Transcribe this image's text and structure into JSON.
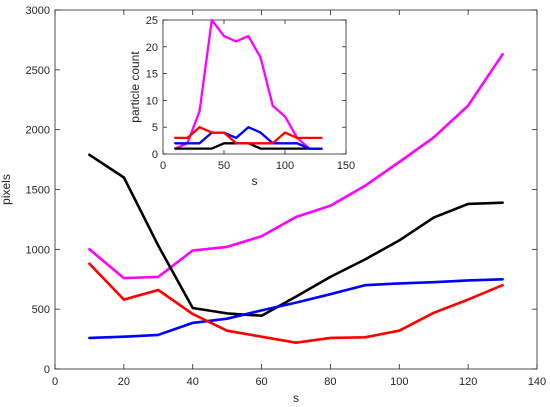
{
  "chart_data": [
    {
      "type": "line",
      "title": "",
      "xlabel": "s",
      "ylabel": "pixels",
      "xlim": [
        0,
        140
      ],
      "ylim": [
        0,
        3000
      ],
      "xticks": [
        0,
        20,
        40,
        60,
        80,
        100,
        120,
        140
      ],
      "yticks": [
        0,
        500,
        1000,
        1500,
        2000,
        2500,
        3000
      ],
      "grid": false,
      "legend": "none",
      "x": [
        10,
        20,
        30,
        40,
        50,
        60,
        70,
        80,
        90,
        100,
        110,
        120,
        130
      ],
      "series": [
        {
          "color": "#ff00ff",
          "values": [
            1000,
            760,
            770,
            990,
            1020,
            1110,
            1270,
            1365,
            1530,
            1730,
            1935,
            2200,
            2630
          ]
        },
        {
          "color": "#000000",
          "values": [
            1790,
            1600,
            1030,
            510,
            465,
            445,
            605,
            770,
            915,
            1075,
            1265,
            1380,
            1390
          ]
        },
        {
          "color": "#0000ff",
          "values": [
            260,
            270,
            285,
            385,
            420,
            490,
            555,
            625,
            700,
            715,
            725,
            740,
            750
          ]
        },
        {
          "color": "#ff0000",
          "values": [
            880,
            580,
            660,
            460,
            320,
            270,
            220,
            260,
            265,
            320,
            470,
            580,
            700
          ]
        }
      ]
    },
    {
      "type": "line",
      "title": "",
      "xlabel": "s",
      "ylabel": "particle count",
      "xlim": [
        0,
        150
      ],
      "ylim": [
        0,
        25
      ],
      "xticks": [
        0,
        50,
        100,
        150
      ],
      "yticks": [
        0,
        5,
        10,
        15,
        20,
        25
      ],
      "grid": false,
      "legend": "none",
      "x": [
        10,
        20,
        30,
        40,
        50,
        60,
        70,
        80,
        90,
        100,
        110,
        120,
        130
      ],
      "series": [
        {
          "color": "#ff00ff",
          "values": [
            1,
            2,
            8,
            25,
            22,
            21,
            22,
            18,
            9,
            7,
            3,
            1,
            1
          ]
        },
        {
          "color": "#000000",
          "values": [
            1,
            1,
            1,
            1,
            2,
            2,
            2,
            1,
            1,
            1,
            1,
            1,
            1
          ]
        },
        {
          "color": "#0000ff",
          "values": [
            2,
            2,
            2,
            4,
            4,
            3,
            5,
            4,
            2,
            2,
            2,
            1,
            1
          ]
        },
        {
          "color": "#ff0000",
          "values": [
            3,
            3,
            5,
            4,
            4,
            2,
            2,
            2,
            2,
            4,
            3,
            3,
            3
          ]
        }
      ]
    }
  ]
}
